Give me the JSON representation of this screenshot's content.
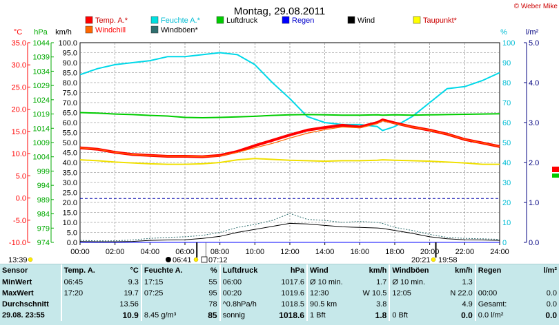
{
  "title": "Montag, 29.08.2011",
  "credit": "© Weber Mike",
  "colors": {
    "temp": "#ff0000",
    "humidity": "#00e0e0",
    "pressure": "#00cc00",
    "rain": "#0000ff",
    "wind": "#000000",
    "dew": "#ffff00",
    "windchill": "#ff6600",
    "gust": "#2f6f6f",
    "left_c": "#ff0000",
    "left_hpa": "#00aa00",
    "right": "#0000aa",
    "rain_ref": "#0000aa"
  },
  "legend": [
    {
      "key": "temp",
      "label": "Temp. A.*",
      "color": "#ff0000"
    },
    {
      "key": "humidity",
      "label": "Feuchte A.*",
      "color": "#00e0e0"
    },
    {
      "key": "pressure",
      "label": "Luftdruck",
      "color": "#00cc00"
    },
    {
      "key": "rain",
      "label": "Regen",
      "color": "#0000ff"
    },
    {
      "key": "wind",
      "label": "Wind",
      "color": "#000000"
    },
    {
      "key": "dew",
      "label": "Taupunkt*",
      "color": "#ffff00"
    },
    {
      "key": "windchill",
      "label": "Windchill",
      "color": "#ff6600"
    },
    {
      "key": "gust",
      "label": "Windböen*",
      "color": "#2f6f6f"
    }
  ],
  "axes": {
    "temp_title": "°C",
    "hpa_title": "hPa",
    "kmh_title": "km/h",
    "pct_title": "%",
    "rain_title": "l/m²",
    "temp_ticks": [
      "35.0",
      "30.0",
      "25.0",
      "20.0",
      "15.0",
      "10.0",
      "5.0",
      "0.0",
      "-5.0",
      "-10.0"
    ],
    "hpa_ticks": [
      "1044",
      "1039",
      "1034",
      "1029",
      "1024",
      "1019",
      "1014",
      "1009",
      "1004",
      "999",
      "994",
      "989",
      "984",
      "979",
      "974"
    ],
    "kmh_ticks": [
      "100.0",
      "95.0",
      "90.0",
      "85.0",
      "80.0",
      "75.0",
      "70.0",
      "65.0",
      "60.0",
      "55.0",
      "50.0",
      "45.0",
      "40.0",
      "35.0",
      "30.0",
      "25.0",
      "20.0",
      "15.0",
      "10.0",
      "5.0",
      "0.0"
    ],
    "pct_ticks": [
      "100",
      "90",
      "80",
      "70",
      "60",
      "50",
      "40",
      "30",
      "20",
      "10",
      "0"
    ],
    "rain_ticks": [
      "5.0",
      "4.0",
      "3.0",
      "2.0",
      "1.0",
      "0.0"
    ],
    "time_ticks": [
      "00:00",
      "02:00",
      "04:00",
      "06:00",
      "08:00",
      "10:00",
      "12:00",
      "14:00",
      "16:00",
      "18:00",
      "20:00",
      "22:00",
      "24:00"
    ]
  },
  "sun": {
    "rise_label": "06:41",
    "set_label": "20:21",
    "moonrise_label": "07:12",
    "moonset_label": "19:58",
    "left_time": "13:39"
  },
  "chart_data": {
    "type": "line",
    "title": "Montag, 29.08.2011",
    "xlabel": "",
    "x_unit": "hours",
    "x": [
      0,
      1,
      2,
      3,
      4,
      5,
      6,
      7,
      8,
      9,
      10,
      11,
      12,
      13,
      14,
      15,
      16,
      17,
      17.3,
      18,
      19,
      20,
      21,
      22,
      23,
      24
    ],
    "xlim": [
      0,
      24
    ],
    "series": [
      {
        "name": "Temp. A.*",
        "axis": "°C",
        "ylim": [
          -10,
          35
        ],
        "values": [
          11.3,
          11.0,
          10.3,
          9.8,
          9.6,
          9.4,
          9.4,
          9.3,
          9.6,
          10.5,
          11.8,
          13.0,
          14.2,
          15.3,
          15.9,
          16.4,
          16.0,
          17.0,
          17.6,
          16.9,
          16.0,
          15.3,
          14.4,
          13.2,
          12.4,
          11.6
        ]
      },
      {
        "name": "Feuchte A.*",
        "axis": "%",
        "ylim": [
          0,
          100
        ],
        "values": [
          84,
          87,
          89,
          90,
          91,
          93,
          93,
          94,
          95,
          94,
          89,
          80,
          72,
          63,
          60,
          59,
          59,
          58,
          56,
          58,
          63,
          70,
          77,
          78,
          81,
          85
        ]
      },
      {
        "name": "Luftdruck",
        "axis": "hPa",
        "ylim": [
          974,
          1044
        ],
        "values": [
          1019.5,
          1019.3,
          1019.0,
          1018.8,
          1018.5,
          1018.3,
          1017.8,
          1017.7,
          1017.8,
          1018.0,
          1018.2,
          1018.5,
          1018.7,
          1018.8,
          1018.7,
          1018.6,
          1018.6,
          1018.7,
          1018.6,
          1018.7,
          1018.6,
          1018.7,
          1018.8,
          1018.9,
          1019.0,
          1019.1
        ]
      },
      {
        "name": "Taupunkt*",
        "axis": "°C",
        "ylim": [
          -10,
          35
        ],
        "values": [
          8.6,
          8.4,
          8.1,
          7.9,
          7.7,
          7.6,
          7.6,
          7.7,
          8.0,
          8.6,
          8.9,
          8.7,
          8.5,
          8.4,
          8.3,
          8.4,
          8.4,
          8.5,
          8.6,
          8.5,
          8.4,
          8.3,
          8.1,
          7.9,
          7.6,
          7.6
        ]
      },
      {
        "name": "Windchill",
        "axis": "°C",
        "ylim": [
          -10,
          35
        ],
        "values": [
          11.3,
          11.0,
          10.3,
          9.8,
          9.6,
          9.4,
          9.4,
          9.3,
          9.5,
          10.3,
          11.3,
          12.3,
          13.5,
          14.6,
          15.4,
          16.0,
          15.8,
          16.8,
          17.4,
          16.8,
          16.0,
          15.3,
          14.4,
          13.2,
          12.4,
          11.6
        ]
      },
      {
        "name": "Wind",
        "axis": "km/h",
        "ylim": [
          0,
          100
        ],
        "values": [
          0.4,
          0.3,
          0.3,
          0.5,
          1.0,
          1.2,
          1.3,
          2.0,
          3.0,
          5.0,
          6.5,
          8.0,
          9.5,
          9.2,
          8.5,
          7.8,
          7.5,
          7.2,
          7.0,
          6.0,
          4.5,
          2.8,
          1.8,
          1.3,
          1.2,
          1.0
        ]
      },
      {
        "name": "Windböen*",
        "axis": "km/h",
        "ylim": [
          0,
          100
        ],
        "values": [
          1.0,
          0.8,
          0.8,
          1.2,
          2.0,
          2.5,
          2.8,
          3.5,
          5.0,
          7.5,
          9.0,
          11.0,
          14.5,
          11.5,
          11.0,
          10.0,
          10.5,
          10.0,
          9.5,
          7.5,
          6.0,
          4.0,
          2.5,
          2.0,
          1.8,
          1.5
        ]
      },
      {
        "name": "Regen",
        "axis": "l/m²",
        "ylim": [
          0,
          5
        ],
        "values": [
          0,
          0,
          0,
          0,
          0,
          0,
          0,
          0,
          0,
          0,
          0,
          0,
          0,
          0,
          0,
          0,
          0,
          0,
          0,
          0,
          0,
          0,
          0,
          0,
          0,
          0
        ]
      }
    ],
    "rain_reference_line": {
      "axis": "l/m²",
      "value": 1.1
    },
    "grid": true
  },
  "stats": {
    "headers": [
      "Sensor",
      "Temp. A.",
      "°C",
      "Feuchte A.",
      "%",
      "Luftdruck",
      "hPa",
      "Wind",
      "km/h",
      "Windböen",
      "km/h",
      "Regen",
      "l/m²"
    ],
    "rows": [
      {
        "label": "MinWert",
        "cells": [
          "06:45",
          "9.3",
          "17:15",
          "55",
          "06:00",
          "1017.6",
          "Ø 10 min.",
          "1.7",
          "Ø 10 min.",
          "1.3",
          "",
          ""
        ]
      },
      {
        "label": "MaxWert",
        "cells": [
          "17:20",
          "19.7",
          "07:25",
          "95",
          "00:20",
          "1019.6",
          "12:30",
          "W 10.5",
          "12:05",
          "N 22.0",
          "00:00",
          "0.0"
        ]
      },
      {
        "label": "Durchschnitt",
        "cells": [
          "",
          "13.56",
          "",
          "78",
          "^0.8hPa/h",
          "1018.5",
          "90.5 km",
          "3.8",
          "",
          "4.9",
          "Gesamt:",
          "0.0"
        ]
      },
      {
        "label": "29.08.  23:55",
        "cells": [
          "",
          "10.9",
          "8.45 g/m³",
          "85",
          "sonnig",
          "1018.6",
          "1 Bft",
          "1.8",
          "0 Bft",
          "0.0",
          "0.0 l/m²",
          "0.0"
        ]
      }
    ]
  }
}
